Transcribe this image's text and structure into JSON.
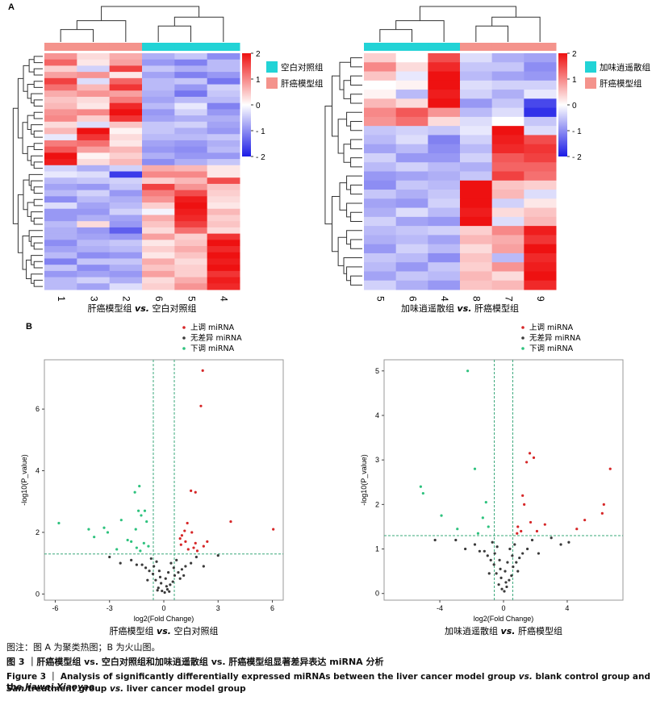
{
  "panel_labels": {
    "a": "A",
    "b": "B"
  },
  "colors": {
    "high": "#ee1111",
    "mid": "#ffffff",
    "low": "#1a1ae6",
    "group_cyan": "#22d3d6",
    "group_salmon": "#f4938c",
    "up": "#d62728",
    "nodiff": "#3a3a3a",
    "down": "#2ec27e"
  },
  "chart_data": [
    {
      "type": "heatmap",
      "columns": [
        "1",
        "3",
        "2",
        "6",
        "5",
        "4"
      ],
      "column_groups": [
        "salmon",
        "salmon",
        "salmon",
        "cyan",
        "cyan",
        "cyan"
      ],
      "legend": [
        {
          "label": "空白对照组",
          "color_key": "group_cyan"
        },
        {
          "label": "肝癌模型组",
          "color_key": "group_salmon"
        }
      ],
      "colorbar_ticks": [
        "2",
        "1",
        "0",
        "- 1",
        "- 2"
      ],
      "zlim": [
        -2,
        2
      ],
      "xlabel_left": "肝癌模型组",
      "xlabel_vs": "vs.",
      "xlabel_right": "空白对照组",
      "values": [
        [
          0.9,
          0.3,
          0.7,
          -0.7,
          -0.5,
          -1.0
        ],
        [
          1.3,
          0.2,
          0.8,
          -0.9,
          -1.1,
          -0.6
        ],
        [
          0.4,
          -0.4,
          1.6,
          -0.5,
          -0.7,
          -0.6
        ],
        [
          0.8,
          0.9,
          0.2,
          -0.8,
          -1.1,
          -0.9
        ],
        [
          1.6,
          -0.3,
          1.3,
          -0.6,
          -0.5,
          -1.2
        ],
        [
          1.2,
          0.6,
          1.7,
          -0.6,
          -0.9,
          -0.4
        ],
        [
          0.7,
          0.9,
          0.8,
          -0.7,
          -1.2,
          -0.5
        ],
        [
          0.5,
          0.3,
          1.1,
          -0.8,
          -0.6,
          -0.6
        ],
        [
          0.6,
          0.2,
          1.8,
          -0.6,
          -0.2,
          -1.1
        ],
        [
          0.9,
          1.0,
          2.1,
          -0.9,
          -0.4,
          -0.9
        ],
        [
          1.0,
          0.4,
          1.7,
          -0.8,
          -0.7,
          -0.7
        ],
        [
          0.3,
          -0.3,
          0.5,
          -0.5,
          -0.4,
          -0.8
        ],
        [
          0.6,
          2.0,
          0.1,
          -0.5,
          -0.7,
          -0.9
        ],
        [
          -0.2,
          1.7,
          0.3,
          -0.6,
          -0.6,
          -0.5
        ],
        [
          1.1,
          1.2,
          0.2,
          -0.8,
          -0.9,
          -0.7
        ],
        [
          1.4,
          0.8,
          0.6,
          -0.9,
          -1.0,
          -0.6
        ],
        [
          2.0,
          0.1,
          0.4,
          -0.7,
          -0.9,
          -0.9
        ],
        [
          1.9,
          0.3,
          0.6,
          -1.0,
          -0.7,
          -0.5
        ],
        [
          -0.4,
          -0.7,
          -0.4,
          0.7,
          0.6,
          0.2
        ],
        [
          -0.2,
          -0.3,
          -1.7,
          1.0,
          1.0,
          0.2
        ],
        [
          -0.6,
          -0.5,
          -0.4,
          0.4,
          0.6,
          1.5
        ],
        [
          -0.8,
          -0.9,
          -0.5,
          1.6,
          0.9,
          0.5
        ],
        [
          -0.6,
          -0.4,
          -0.9,
          1.1,
          1.5,
          0.4
        ],
        [
          -1.0,
          -0.6,
          -0.7,
          0.9,
          1.9,
          0.3
        ],
        [
          -0.3,
          -0.8,
          -0.6,
          0.4,
          2.0,
          0.2
        ],
        [
          -0.9,
          -0.9,
          -0.4,
          -0.1,
          1.9,
          0.6
        ],
        [
          -0.9,
          -0.7,
          -0.8,
          0.7,
          1.8,
          0.4
        ],
        [
          -0.6,
          0.3,
          -0.9,
          0.5,
          1.6,
          0.5
        ],
        [
          -0.7,
          -0.9,
          -1.4,
          0.3,
          1.2,
          0.3
        ],
        [
          -0.7,
          -0.8,
          -0.9,
          0.8,
          0.4,
          1.7
        ],
        [
          -1.0,
          -0.6,
          -0.5,
          0.2,
          0.5,
          2.0
        ],
        [
          -0.8,
          -0.7,
          -0.6,
          0.4,
          0.7,
          1.8
        ],
        [
          -0.6,
          -1.0,
          -0.9,
          0.2,
          0.5,
          2.1
        ],
        [
          -1.1,
          -0.5,
          -0.5,
          0.7,
          0.3,
          1.9
        ],
        [
          -0.5,
          -1.0,
          -0.7,
          0.5,
          0.4,
          2.0
        ],
        [
          -0.9,
          -0.8,
          -0.9,
          0.8,
          0.4,
          1.7
        ],
        [
          -0.6,
          -0.4,
          -0.7,
          0.3,
          0.7,
          1.9
        ],
        [
          -0.6,
          -0.8,
          -0.3,
          0.4,
          0.9,
          1.8
        ]
      ]
    },
    {
      "type": "heatmap",
      "columns": [
        "5",
        "6",
        "4",
        "8",
        "7",
        "9"
      ],
      "column_groups": [
        "cyan",
        "cyan",
        "cyan",
        "salmon",
        "salmon",
        "salmon"
      ],
      "legend": [
        {
          "label": "加味逍遥散组",
          "color_key": "group_cyan"
        },
        {
          "label": "肝癌模型组",
          "color_key": "group_salmon"
        }
      ],
      "colorbar_ticks": [
        "2",
        "1",
        "0",
        "- 1",
        "- 2"
      ],
      "zlim": [
        -2,
        2
      ],
      "xlabel_left": "加味逍遥散组",
      "xlabel_vs": "vs.",
      "xlabel_right": "肝癌模型组",
      "values": [
        [
          0.4,
          0.0,
          1.5,
          -0.3,
          -0.7,
          -0.8
        ],
        [
          1.0,
          0.3,
          1.8,
          -0.5,
          -0.5,
          -1.0
        ],
        [
          0.5,
          -0.2,
          2.1,
          -0.6,
          -0.8,
          -0.9
        ],
        [
          0.0,
          0.1,
          2.0,
          -0.3,
          -0.4,
          -0.4
        ],
        [
          0.1,
          -0.6,
          1.9,
          -0.4,
          -0.7,
          -0.2
        ],
        [
          0.6,
          0.3,
          2.0,
          -0.9,
          -0.5,
          -1.6
        ],
        [
          1.0,
          1.4,
          0.9,
          -0.6,
          -0.3,
          -1.8
        ],
        [
          0.9,
          1.2,
          0.3,
          -0.3,
          0.0,
          -0.5
        ],
        [
          -0.5,
          -0.4,
          -0.5,
          -0.2,
          2.0,
          -0.3
        ],
        [
          -0.6,
          -0.3,
          -1.1,
          -0.4,
          1.9,
          1.5
        ],
        [
          -0.8,
          -0.6,
          -1.0,
          -0.6,
          1.8,
          1.7
        ],
        [
          -0.4,
          -0.9,
          -0.9,
          -0.4,
          1.4,
          1.6
        ],
        [
          -0.6,
          -0.4,
          -0.6,
          -0.7,
          1.3,
          1.3
        ],
        [
          -0.9,
          -0.8,
          -0.7,
          -0.5,
          1.6,
          1.2
        ],
        [
          -1.0,
          -0.5,
          -0.6,
          2.0,
          0.5,
          0.4
        ],
        [
          -0.5,
          -0.7,
          -0.5,
          2.0,
          0.6,
          -0.3
        ],
        [
          -0.8,
          -0.9,
          -0.4,
          2.1,
          -0.4,
          0.2
        ],
        [
          -0.7,
          -0.3,
          -0.6,
          1.9,
          0.3,
          0.5
        ],
        [
          -0.4,
          -0.8,
          -0.9,
          2.0,
          -0.3,
          0.6
        ],
        [
          -0.6,
          -0.5,
          -0.4,
          0.4,
          1.0,
          1.9
        ],
        [
          -0.7,
          -0.6,
          -0.8,
          0.6,
          0.7,
          1.7
        ],
        [
          -0.9,
          -0.4,
          -0.6,
          0.3,
          0.8,
          2.0
        ],
        [
          -0.5,
          -0.6,
          -1.0,
          0.5,
          -0.6,
          1.8
        ],
        [
          -0.6,
          -0.9,
          -0.5,
          0.4,
          0.9,
          1.9
        ],
        [
          -0.8,
          -0.5,
          -0.6,
          0.6,
          0.3,
          2.0
        ],
        [
          -0.4,
          -0.7,
          -0.9,
          0.5,
          0.6,
          1.8
        ]
      ]
    },
    {
      "type": "scatter",
      "xlabel": "log2(Fold Change)",
      "ylabel": "-log10(P_value)",
      "xlim": [
        -6.6,
        6.6
      ],
      "ylim": [
        -0.2,
        7.6
      ],
      "xticks": [
        -6,
        -3,
        0,
        3,
        6
      ],
      "yticks": [
        0,
        2,
        4,
        6
      ],
      "thresholds": {
        "x": [
          -0.58,
          0.58
        ],
        "y": 1.3
      },
      "legend": [
        "上调 miRNA",
        "无差异 miRNA",
        "下调 miRNA"
      ],
      "caption_left": "肝癌模型组",
      "caption_vs": "vs.",
      "caption_right": "空白对照组",
      "series": [
        {
          "name": "上调 miRNA",
          "x": [
            2.15,
            2.05,
            1.75,
            1.5,
            3.7,
            1.3,
            1.15,
            1.55,
            1.75,
            0.9,
            1.0,
            1.2,
            2.4,
            2.2,
            1.65,
            1.35,
            6.05,
            0.95,
            1.85
          ],
          "y": [
            7.25,
            6.1,
            3.3,
            3.35,
            2.35,
            2.3,
            2.05,
            2.0,
            1.65,
            1.8,
            1.9,
            1.7,
            1.7,
            1.55,
            1.5,
            1.45,
            2.1,
            1.6,
            1.4
          ]
        },
        {
          "name": "下调 miRNA",
          "x": [
            -1.35,
            -1.6,
            -1.4,
            -1.05,
            -1.25,
            -0.95,
            -2.35,
            -1.55,
            -3.1,
            -3.3,
            -4.15,
            -3.85,
            -5.8,
            -2.0,
            -1.8,
            -1.1,
            -0.85,
            -1.5,
            -2.6,
            -1.3
          ],
          "y": [
            3.5,
            3.3,
            2.7,
            2.7,
            2.55,
            2.35,
            2.4,
            2.1,
            2.0,
            2.15,
            2.1,
            1.85,
            2.3,
            1.75,
            1.7,
            1.65,
            1.55,
            1.5,
            1.45,
            1.4
          ]
        },
        {
          "name": "无差异 miRNA",
          "x": [
            0.05,
            -0.1,
            0.2,
            -0.3,
            0.35,
            0.5,
            -0.45,
            0.1,
            -0.2,
            0.6,
            -0.6,
            0.8,
            -0.8,
            1.0,
            -1.0,
            1.2,
            -1.2,
            0.4,
            -0.4,
            0.15,
            -0.15,
            0.7,
            -0.7,
            1.5,
            -1.5,
            0.25,
            -0.25,
            0.9,
            -0.9,
            1.8,
            -1.8,
            2.2,
            -2.4,
            0.55,
            -0.55,
            3.0,
            -3.0,
            0.3,
            -0.35,
            1.1
          ],
          "y": [
            0.05,
            0.1,
            0.15,
            0.2,
            0.3,
            0.4,
            0.45,
            0.5,
            0.55,
            0.6,
            0.65,
            0.7,
            0.75,
            0.8,
            0.85,
            0.9,
            0.95,
            1.0,
            1.05,
            0.25,
            0.35,
            1.1,
            1.15,
            1.0,
            0.95,
            0.7,
            0.75,
            0.5,
            0.45,
            1.2,
            1.1,
            0.9,
            1.0,
            0.85,
            0.9,
            1.25,
            1.2,
            0.08,
            0.12,
            0.6
          ]
        }
      ]
    },
    {
      "type": "scatter",
      "xlabel": "log2(Fold Change)",
      "ylabel": "-log10(P_value)",
      "xlim": [
        -7.5,
        7.5
      ],
      "ylim": [
        -0.15,
        5.25
      ],
      "xticks": [
        -4,
        0,
        4
      ],
      "yticks": [
        0,
        1,
        2,
        3,
        4,
        5
      ],
      "thresholds": {
        "x": [
          -0.58,
          0.58
        ],
        "y": 1.3
      },
      "legend": [
        "上调 miRNA",
        "无差异 miRNA",
        "下调 miRNA"
      ],
      "caption_left": "加味逍遥散组",
      "caption_vs": "vs.",
      "caption_right": "肝癌模型组",
      "series": [
        {
          "name": "上调 miRNA",
          "x": [
            1.65,
            1.9,
            1.45,
            1.2,
            1.3,
            0.9,
            1.1,
            2.1,
            2.6,
            6.7,
            6.3,
            6.2,
            5.1,
            4.6,
            0.85,
            1.7
          ],
          "y": [
            3.15,
            3.05,
            2.95,
            2.2,
            2.0,
            1.5,
            1.4,
            1.4,
            1.55,
            2.8,
            2.0,
            1.8,
            1.65,
            1.45,
            1.35,
            1.6
          ]
        },
        {
          "name": "下调 miRNA",
          "x": [
            -2.25,
            -1.8,
            -5.2,
            -5.05,
            -1.1,
            -3.9,
            -1.3,
            -0.95,
            -1.6,
            -2.9
          ],
          "y": [
            5.0,
            2.8,
            2.4,
            2.25,
            2.05,
            1.75,
            1.7,
            1.5,
            1.35,
            1.45
          ]
        },
        {
          "name": "无差异 miRNA",
          "x": [
            0.05,
            -0.1,
            0.2,
            -0.3,
            0.35,
            0.5,
            -0.45,
            0.1,
            -0.2,
            0.6,
            -0.6,
            0.8,
            -0.8,
            1.0,
            -1.0,
            1.2,
            -1.2,
            0.4,
            -0.4,
            0.15,
            -0.15,
            0.7,
            -0.7,
            1.5,
            -1.5,
            0.25,
            -0.25,
            0.9,
            -0.9,
            1.8,
            -1.8,
            2.2,
            -2.4,
            0.55,
            -0.55,
            3.0,
            -3.0,
            -4.3,
            3.6,
            4.1
          ],
          "y": [
            0.05,
            0.1,
            0.15,
            0.2,
            0.3,
            0.4,
            0.45,
            0.5,
            0.55,
            0.6,
            0.65,
            0.7,
            0.75,
            0.8,
            0.85,
            0.9,
            0.95,
            1.0,
            1.05,
            0.25,
            0.35,
            1.1,
            1.15,
            1.0,
            0.95,
            0.7,
            0.75,
            0.5,
            0.45,
            1.2,
            1.1,
            0.9,
            1.0,
            0.85,
            0.9,
            1.25,
            1.2,
            1.2,
            1.1,
            1.15
          ]
        }
      ]
    }
  ],
  "captions": {
    "note": "图注：图 A 为聚类热图；B 为火山图。",
    "cn": "图 3 ｜肝癌模型组 vs. 空白对照组和加味逍遥散组 vs. 肝癌模型组显著差异表达 miRNA 分析",
    "en1_a": "Figure 3 ｜ Analysis of significantly differentially expressed miRNAs between the liver cancer model group ",
    "en1_vs": "vs.",
    "en1_b": " blank control group and the ",
    "en1_it": "Jiawei Xiaoyao",
    "en2_it": "San",
    "en2_a": " treatment group ",
    "en2_vs": "vs.",
    "en2_b": " liver cancer model group"
  }
}
